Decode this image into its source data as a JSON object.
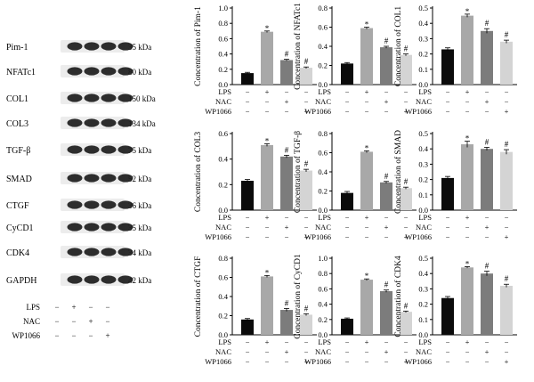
{
  "blot": {
    "proteins": [
      "Pim-1",
      "NFATc1",
      "COL1",
      "COL3",
      "TGF-β",
      "SMAD",
      "CTGF",
      "CyCD1",
      "CDK4",
      "GAPDH"
    ],
    "weights": [
      "35 kDa",
      "80 kDa",
      "150 kDa",
      "134 kDa",
      "75 kDa",
      "52 kDa",
      "36 kDa",
      "35 kDa",
      "34 kDa",
      "42 kDa"
    ],
    "treatments": [
      {
        "name": "LPS",
        "marks": [
          "−",
          "+",
          "−",
          "−"
        ]
      },
      {
        "name": "NAC",
        "marks": [
          "−",
          "−",
          "+",
          "−"
        ]
      },
      {
        "name": "WP1066",
        "marks": [
          "−",
          "−",
          "−",
          "+"
        ]
      }
    ]
  },
  "chart_data": [
    {
      "type": "bar",
      "ylabel": "Concentration of Pim-1",
      "ylim": [
        0,
        1.0
      ],
      "ticks": [
        "0.0",
        "0.2",
        "0.4",
        "0.6",
        "0.8",
        "1.0"
      ],
      "values": [
        0.15,
        0.69,
        0.32,
        0.22
      ],
      "errors": [
        0.01,
        0.01,
        0.01,
        0.01
      ],
      "sig": [
        "",
        "*",
        "#",
        "#"
      ]
    },
    {
      "type": "bar",
      "ylabel": "Concentration of NFATc1",
      "ylim": [
        0,
        0.8
      ],
      "ticks": [
        "0.0",
        "0.2",
        "0.4",
        "0.6",
        "0.8"
      ],
      "values": [
        0.22,
        0.59,
        0.39,
        0.31
      ],
      "errors": [
        0.01,
        0.01,
        0.01,
        0.01
      ],
      "sig": [
        "",
        "*",
        "#",
        "#"
      ]
    },
    {
      "type": "bar",
      "ylabel": "Concentration of COL1",
      "ylim": [
        0,
        0.5
      ],
      "ticks": [
        "0.0",
        "0.1",
        "0.2",
        "0.3",
        "0.4",
        "0.5"
      ],
      "values": [
        0.23,
        0.45,
        0.35,
        0.28
      ],
      "errors": [
        0.01,
        0.01,
        0.015,
        0.01
      ],
      "sig": [
        "",
        "*",
        "#",
        "#"
      ]
    },
    {
      "type": "bar",
      "ylabel": "Concentration of COL3",
      "ylim": [
        0,
        0.6
      ],
      "ticks": [
        "0.0",
        "0.2",
        "0.4",
        "0.6"
      ],
      "values": [
        0.23,
        0.51,
        0.42,
        0.31
      ],
      "errors": [
        0.01,
        0.01,
        0.01,
        0.01
      ],
      "sig": [
        "",
        "*",
        "#",
        "#"
      ]
    },
    {
      "type": "bar",
      "ylabel": "Concentration of TGF-β",
      "ylim": [
        0,
        0.8
      ],
      "ticks": [
        "0.0",
        "0.2",
        "0.4",
        "0.6",
        "0.8"
      ],
      "values": [
        0.18,
        0.61,
        0.29,
        0.23
      ],
      "errors": [
        0.015,
        0.01,
        0.01,
        0.01
      ],
      "sig": [
        "",
        "*",
        "#",
        "#"
      ]
    },
    {
      "type": "bar",
      "ylabel": "Concentration of SMAD",
      "ylim": [
        0,
        0.5
      ],
      "ticks": [
        "0.0",
        "0.1",
        "0.2",
        "0.3",
        "0.4",
        "0.5"
      ],
      "values": [
        0.21,
        0.43,
        0.4,
        0.38
      ],
      "errors": [
        0.01,
        0.02,
        0.01,
        0.015
      ],
      "sig": [
        "",
        "*",
        "#",
        "#"
      ]
    },
    {
      "type": "bar",
      "ylabel": "Concentration of CTGF",
      "ylim": [
        0,
        0.8
      ],
      "ticks": [
        "0.0",
        "0.2",
        "0.4",
        "0.6",
        "0.8"
      ],
      "values": [
        0.16,
        0.61,
        0.26,
        0.21
      ],
      "errors": [
        0.01,
        0.01,
        0.015,
        0.01
      ],
      "sig": [
        "",
        "*",
        "#",
        "#"
      ]
    },
    {
      "type": "bar",
      "ylabel": "Concentration of CyCD1",
      "ylim": [
        0,
        1.0
      ],
      "ticks": [
        "0.0",
        "0.2",
        "0.4",
        "0.6",
        "0.8",
        "1.0"
      ],
      "values": [
        0.21,
        0.72,
        0.57,
        0.3
      ],
      "errors": [
        0.01,
        0.01,
        0.015,
        0.01
      ],
      "sig": [
        "",
        "*",
        "#",
        "#"
      ]
    },
    {
      "type": "bar",
      "ylabel": "Concentration of CDK4",
      "ylim": [
        0,
        0.5
      ],
      "ticks": [
        "0.0",
        "0.1",
        "0.2",
        "0.3",
        "0.4",
        "0.5"
      ],
      "values": [
        0.24,
        0.44,
        0.4,
        0.32
      ],
      "errors": [
        0.01,
        0.005,
        0.015,
        0.01
      ],
      "sig": [
        "",
        "*",
        "#",
        "#"
      ]
    }
  ],
  "conditions": {
    "LPS": [
      "−",
      "+",
      "−",
      "−"
    ],
    "NAC": [
      "−",
      "−",
      "+",
      "−"
    ],
    "WP1066": [
      "−",
      "−",
      "−",
      "+"
    ]
  },
  "colors": {
    "bars": [
      "#0b0b0b",
      "#a8a8a8",
      "#7c7c7c",
      "#d4d4d4"
    ],
    "band": "#1c1c1c",
    "axis": "#000000"
  }
}
